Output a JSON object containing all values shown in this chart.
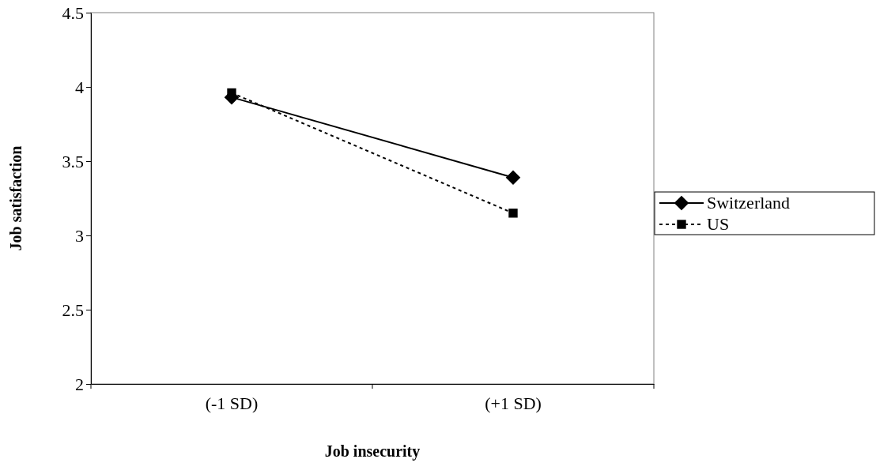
{
  "chart_data": {
    "type": "line",
    "xlabel": "Job insecurity",
    "ylabel": "Job satisfaction",
    "categories": [
      "(-1 SD)",
      "(+1 SD)"
    ],
    "series": [
      {
        "name": "Switzerland",
        "color": "#000000",
        "values": [
          3.93,
          3.39
        ],
        "marker": "diamond",
        "line_style": "solid"
      },
      {
        "name": "US",
        "color": "#000000",
        "values": [
          3.96,
          3.15
        ],
        "marker": "square",
        "line_style": "dotted"
      }
    ],
    "ylim": [
      2,
      4.5
    ],
    "yticks": [
      2,
      2.5,
      3,
      3.5,
      4,
      4.5
    ],
    "grid": false,
    "legend": "right"
  }
}
